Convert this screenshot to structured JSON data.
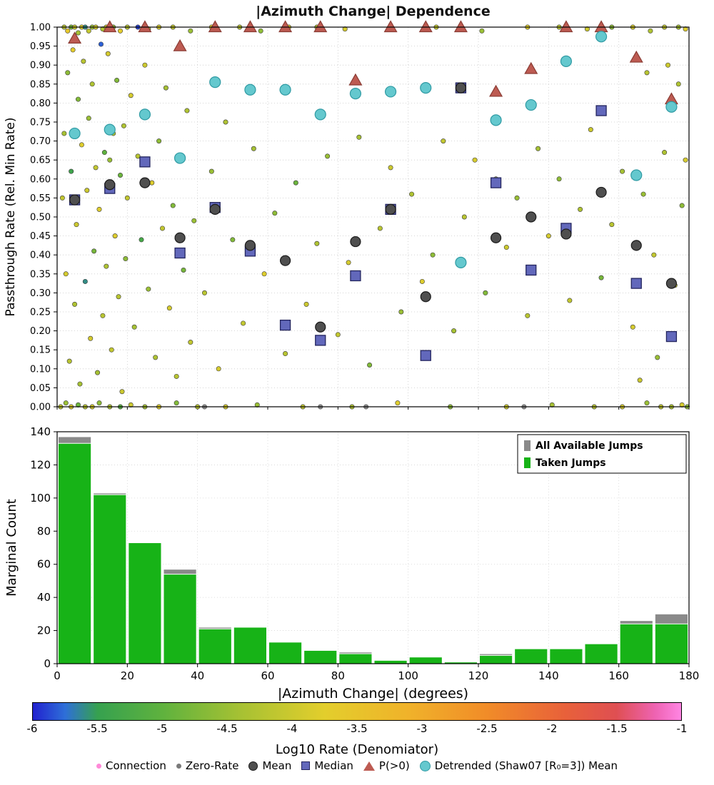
{
  "figure": {
    "title": "|Azimuth Change| Dependence"
  },
  "chart_data": [
    {
      "type": "scatter",
      "title": "|Azimuth Change| Dependence",
      "xlabel": "",
      "ylabel": "Passthrough Rate (Rel. Min Rate)",
      "xlim": [
        0,
        180
      ],
      "ylim": [
        0.0,
        1.0
      ],
      "grid": true,
      "yticks": [
        "0.00",
        "0.05",
        "0.10",
        "0.15",
        "0.20",
        "0.25",
        "0.30",
        "0.35",
        "0.40",
        "0.45",
        "0.50",
        "0.55",
        "0.60",
        "0.65",
        "0.70",
        "0.75",
        "0.80",
        "0.85",
        "0.90",
        "0.95",
        "1.00"
      ],
      "xticks": [
        0,
        20,
        40,
        60,
        80,
        100,
        120,
        140,
        160,
        180
      ],
      "styles": {
        "mean_fill": "#4f4f4f",
        "mean_edge": "#1a1a1a",
        "median_fill": "#6268bb",
        "median_edge": "#23255e",
        "p_gt0_fill": "#bd5b52",
        "p_gt0_edge": "#8a3b33",
        "detrended_fill": "#64c8ce",
        "detrended_edge": "#2f9aa3",
        "zero_rate_fill": "#8a8a8a",
        "dot_edge": "#3a3a3a"
      },
      "connection_points": [
        [
          2,
          1.0,
          -4.2
        ],
        [
          3,
          0.99,
          -3.6
        ],
        [
          4,
          1.0,
          -4.8
        ],
        [
          5,
          1.0,
          -4.0
        ],
        [
          6,
          0.985,
          -4.4
        ],
        [
          7,
          1.0,
          -3.8
        ],
        [
          8,
          1.0,
          -5.6
        ],
        [
          9,
          0.99,
          -4.1
        ],
        [
          10,
          1.0,
          -4.5
        ],
        [
          11,
          1.0,
          -3.9
        ],
        [
          13,
          0.995,
          -4.3
        ],
        [
          14,
          1.0,
          -4.0
        ],
        [
          16,
          1.0,
          -4.6
        ],
        [
          18,
          0.99,
          -3.7
        ],
        [
          20,
          1.0,
          -4.2
        ],
        [
          23,
          1.0,
          -5.9
        ],
        [
          26,
          0.995,
          -4.4
        ],
        [
          29,
          1.0,
          -3.9
        ],
        [
          33,
          1.0,
          -4.1
        ],
        [
          38,
          0.99,
          -4.5
        ],
        [
          44,
          1.0,
          -3.8
        ],
        [
          52,
          1.0,
          -4.2
        ],
        [
          58,
          0.99,
          -4.6
        ],
        [
          66,
          1.0,
          -4.0
        ],
        [
          74,
          1.0,
          -4.3
        ],
        [
          82,
          0.995,
          -3.9
        ],
        [
          95,
          1.0,
          -4.4
        ],
        [
          108,
          1.0,
          -4.1
        ],
        [
          121,
          0.99,
          -4.5
        ],
        [
          134,
          1.0,
          -3.8
        ],
        [
          143,
          1.0,
          -4.2
        ],
        [
          151,
          0.995,
          -4.0
        ],
        [
          158,
          1.0,
          -4.6
        ],
        [
          164,
          1.0,
          -3.9
        ],
        [
          169,
          0.99,
          -4.3
        ],
        [
          173,
          1.0,
          -4.1
        ],
        [
          177,
          1.0,
          -4.4
        ],
        [
          179,
          0.995,
          -3.8
        ],
        [
          1,
          0.0,
          -4.1
        ],
        [
          2.5,
          0.01,
          -4.5
        ],
        [
          4,
          0.0,
          -3.8
        ],
        [
          6,
          0.005,
          -4.9
        ],
        [
          8,
          0.0,
          -4.2
        ],
        [
          10,
          0.0,
          -3.9
        ],
        [
          12,
          0.01,
          -4.6
        ],
        [
          15,
          0.0,
          -4.3
        ],
        [
          18,
          0.0,
          -5.1
        ],
        [
          21,
          0.005,
          -4.0
        ],
        [
          25,
          0.0,
          -4.4
        ],
        [
          29,
          0.0,
          -3.8
        ],
        [
          34,
          0.01,
          -4.7
        ],
        [
          40,
          0.0,
          -4.2
        ],
        [
          48,
          0.0,
          -3.9
        ],
        [
          57,
          0.005,
          -4.5
        ],
        [
          70,
          0.0,
          -4.1
        ],
        [
          84,
          0.0,
          -4.3
        ],
        [
          97,
          0.01,
          -3.8
        ],
        [
          112,
          0.0,
          -4.6
        ],
        [
          128,
          0.0,
          -4.0
        ],
        [
          141,
          0.005,
          -4.4
        ],
        [
          153,
          0.0,
          -4.2
        ],
        [
          161,
          0.0,
          -3.9
        ],
        [
          168,
          0.01,
          -4.5
        ],
        [
          172,
          0.0,
          -4.1
        ],
        [
          175,
          0.0,
          -4.3
        ],
        [
          178,
          0.005,
          -3.9
        ],
        [
          179.5,
          0.0,
          -4.6
        ],
        [
          1.5,
          0.55,
          -4.1
        ],
        [
          2,
          0.72,
          -4.4
        ],
        [
          2.5,
          0.35,
          -3.9
        ],
        [
          3,
          0.88,
          -4.6
        ],
        [
          3.5,
          0.12,
          -4.2
        ],
        [
          4,
          0.62,
          -5.4
        ],
        [
          4.5,
          0.94,
          -3.7
        ],
        [
          5,
          0.27,
          -4.3
        ],
        [
          5.5,
          0.48,
          -4.0
        ],
        [
          6,
          0.81,
          -4.7
        ],
        [
          6.5,
          0.06,
          -4.4
        ],
        [
          7,
          0.69,
          -3.8
        ],
        [
          7.5,
          0.91,
          -4.2
        ],
        [
          8,
          0.33,
          -5.6
        ],
        [
          8.5,
          0.57,
          -4.0
        ],
        [
          9,
          0.76,
          -4.5
        ],
        [
          9.5,
          0.18,
          -3.9
        ],
        [
          10,
          0.85,
          -4.3
        ],
        [
          10.5,
          0.41,
          -4.8
        ],
        [
          11,
          0.63,
          -4.1
        ],
        [
          11.5,
          0.09,
          -4.4
        ],
        [
          12,
          0.52,
          -3.8
        ],
        [
          12.5,
          0.955,
          -5.8
        ],
        [
          13,
          0.24,
          -4.2
        ],
        [
          13.5,
          0.67,
          -5.0
        ],
        [
          14,
          0.37,
          -4.3
        ],
        [
          14.5,
          0.93,
          -3.9
        ],
        [
          15,
          0.65,
          -4.5
        ],
        [
          15.5,
          0.15,
          -4.1
        ],
        [
          16,
          0.72,
          -4.4
        ],
        [
          16.5,
          0.45,
          -3.8
        ],
        [
          17,
          0.86,
          -4.7
        ],
        [
          17.5,
          0.29,
          -4.2
        ],
        [
          18,
          0.61,
          -4.9
        ],
        [
          18.5,
          0.04,
          -4.0
        ],
        [
          19,
          0.74,
          -4.3
        ],
        [
          19.5,
          0.39,
          -4.6
        ],
        [
          20,
          0.55,
          -4.1
        ],
        [
          21,
          0.82,
          -3.9
        ],
        [
          22,
          0.21,
          -4.4
        ],
        [
          23,
          0.66,
          -4.2
        ],
        [
          24,
          0.44,
          -5.3
        ],
        [
          25,
          0.9,
          -4.0
        ],
        [
          26,
          0.31,
          -4.5
        ],
        [
          27,
          0.59,
          -3.8
        ],
        [
          28,
          0.13,
          -4.3
        ],
        [
          29,
          0.7,
          -4.6
        ],
        [
          30,
          0.47,
          -4.1
        ],
        [
          31,
          0.84,
          -4.4
        ],
        [
          32,
          0.26,
          -3.9
        ],
        [
          33,
          0.53,
          -4.7
        ],
        [
          34,
          0.08,
          -4.2
        ],
        [
          35,
          0.65,
          -4.0
        ],
        [
          36,
          0.36,
          -4.8
        ],
        [
          37,
          0.78,
          -4.3
        ],
        [
          38,
          0.17,
          -4.1
        ],
        [
          39,
          0.49,
          -4.5
        ],
        [
          42,
          0.3,
          -4.2
        ],
        [
          44,
          0.62,
          -4.5
        ],
        [
          46,
          0.1,
          -3.9
        ],
        [
          48,
          0.75,
          -4.3
        ],
        [
          50,
          0.44,
          -4.7
        ],
        [
          53,
          0.22,
          -4.1
        ],
        [
          56,
          0.68,
          -4.4
        ],
        [
          59,
          0.35,
          -3.8
        ],
        [
          62,
          0.51,
          -4.6
        ],
        [
          65,
          0.14,
          -4.2
        ],
        [
          68,
          0.59,
          -4.9
        ],
        [
          71,
          0.27,
          -4.0
        ],
        [
          74,
          0.43,
          -4.3
        ],
        [
          77,
          0.66,
          -4.5
        ],
        [
          80,
          0.19,
          -4.1
        ],
        [
          83,
          0.38,
          -3.9
        ],
        [
          86,
          0.71,
          -4.4
        ],
        [
          89,
          0.11,
          -4.7
        ],
        [
          92,
          0.47,
          -4.2
        ],
        [
          95,
          0.63,
          -4.0
        ],
        [
          98,
          0.25,
          -4.5
        ],
        [
          101,
          0.56,
          -4.3
        ],
        [
          104,
          0.33,
          -3.8
        ],
        [
          107,
          0.4,
          -4.6
        ],
        [
          110,
          0.7,
          -4.1
        ],
        [
          113,
          0.2,
          -4.4
        ],
        [
          116,
          0.5,
          -4.2
        ],
        [
          119,
          0.65,
          -3.9
        ],
        [
          122,
          0.3,
          -4.7
        ],
        [
          125,
          0.6,
          -4.3
        ],
        [
          128,
          0.42,
          -4.0
        ],
        [
          131,
          0.55,
          -4.5
        ],
        [
          134,
          0.24,
          -4.2
        ],
        [
          137,
          0.68,
          -4.4
        ],
        [
          140,
          0.45,
          -3.9
        ],
        [
          143,
          0.6,
          -4.6
        ],
        [
          146,
          0.28,
          -4.1
        ],
        [
          149,
          0.52,
          -4.3
        ],
        [
          152,
          0.73,
          -4.0
        ],
        [
          155,
          0.34,
          -4.8
        ],
        [
          158,
          0.48,
          -4.2
        ],
        [
          161,
          0.62,
          -4.4
        ],
        [
          164,
          0.21,
          -3.9
        ],
        [
          167,
          0.56,
          -4.5
        ],
        [
          170,
          0.4,
          -4.1
        ],
        [
          173,
          0.67,
          -4.3
        ],
        [
          176,
          0.32,
          -4.0
        ],
        [
          178,
          0.53,
          -4.6
        ],
        [
          174,
          0.9,
          -4.0
        ],
        [
          177,
          0.85,
          -4.3
        ],
        [
          179,
          0.65,
          -3.9
        ],
        [
          168,
          0.88,
          -4.2
        ],
        [
          171,
          0.13,
          -4.5
        ],
        [
          166,
          0.07,
          -4.0
        ]
      ],
      "zero_rate_points": [
        [
          42,
          0.0
        ],
        [
          75,
          0.0
        ],
        [
          88,
          0.0
        ],
        [
          133,
          0.0
        ]
      ],
      "mean": {
        "x": [
          5,
          15,
          25,
          35,
          45,
          55,
          65,
          75,
          85,
          95,
          105,
          115,
          125,
          135,
          145,
          155,
          165,
          175
        ],
        "y": [
          0.545,
          0.585,
          0.59,
          0.445,
          0.52,
          0.425,
          0.385,
          0.21,
          0.435,
          0.52,
          0.29,
          0.84,
          0.445,
          0.5,
          0.455,
          0.565,
          0.425,
          0.325
        ]
      },
      "median": {
        "x": [
          5,
          15,
          25,
          35,
          45,
          55,
          65,
          75,
          85,
          95,
          105,
          115,
          125,
          135,
          145,
          155,
          165,
          175
        ],
        "y": [
          0.545,
          0.575,
          0.645,
          0.405,
          0.525,
          0.41,
          0.215,
          0.175,
          0.345,
          0.52,
          0.135,
          0.84,
          0.59,
          0.36,
          0.47,
          0.78,
          0.325,
          0.185
        ]
      },
      "p_gt0": {
        "x": [
          5,
          15,
          25,
          35,
          45,
          55,
          65,
          75,
          85,
          95,
          105,
          115,
          125,
          135,
          145,
          155,
          165,
          175
        ],
        "y": [
          0.97,
          1.0,
          1.0,
          0.95,
          1.0,
          1.0,
          1.0,
          1.0,
          0.86,
          1.0,
          1.0,
          1.0,
          0.83,
          0.89,
          1.0,
          1.0,
          0.92,
          0.81
        ]
      },
      "detrended": {
        "x": [
          5,
          15,
          25,
          35,
          45,
          55,
          65,
          75,
          85,
          95,
          105,
          115,
          125,
          135,
          145,
          155,
          165,
          175
        ],
        "y": [
          0.72,
          0.73,
          0.77,
          0.655,
          0.855,
          0.835,
          0.835,
          0.77,
          0.825,
          0.83,
          0.84,
          0.38,
          0.755,
          0.795,
          0.91,
          0.975,
          0.61,
          0.79
        ]
      }
    },
    {
      "type": "bar",
      "ylabel": "Marginal Count",
      "xlabel": "|Azimuth Change| (degrees)",
      "ylim": [
        0,
        140
      ],
      "yticks": [
        0,
        20,
        40,
        60,
        80,
        100,
        120,
        140
      ],
      "xticks": [
        "0",
        "20",
        "40",
        "60",
        "80",
        "100",
        "120",
        "140",
        "160",
        "180"
      ],
      "bin_width": 10,
      "bin_centers": [
        5,
        15,
        25,
        35,
        45,
        55,
        65,
        75,
        85,
        95,
        105,
        115,
        125,
        135,
        145,
        155,
        165,
        175
      ],
      "series": [
        {
          "name": "All Available Jumps",
          "color": "#8a8a8a",
          "values": [
            137,
            103,
            73,
            57,
            22,
            22,
            13,
            8,
            7,
            2,
            4,
            1,
            6,
            9,
            9,
            12,
            26,
            30
          ]
        },
        {
          "name": "Taken Jumps",
          "color": "#17b317",
          "values": [
            133,
            102,
            73,
            54,
            21,
            22,
            13,
            8,
            6,
            2,
            4,
            1,
            5,
            9,
            9,
            12,
            24,
            24
          ]
        }
      ],
      "legend_position": "top-right"
    }
  ],
  "colorbar": {
    "label": "Log10 Rate (Denomiator)",
    "range": [
      -6,
      -1
    ],
    "ticks": [
      "-6",
      "-5.5",
      "-5",
      "-4.5",
      "-4",
      "-3.5",
      "-3",
      "-2.5",
      "-2",
      "-1.5",
      "-1"
    ],
    "stops": [
      {
        "t": 0.0,
        "c": "#2121cf"
      },
      {
        "t": 0.05,
        "c": "#2e6fd8"
      },
      {
        "t": 0.1,
        "c": "#36a14f"
      },
      {
        "t": 0.2,
        "c": "#5fb23e"
      },
      {
        "t": 0.32,
        "c": "#a6c133"
      },
      {
        "t": 0.45,
        "c": "#e3ce2c"
      },
      {
        "t": 0.58,
        "c": "#f0b22a"
      },
      {
        "t": 0.7,
        "c": "#f18c28"
      },
      {
        "t": 0.82,
        "c": "#e8613a"
      },
      {
        "t": 0.9,
        "c": "#df4f52"
      },
      {
        "t": 0.96,
        "c": "#ee63b2"
      },
      {
        "t": 1.0,
        "c": "#ff85e3"
      }
    ]
  },
  "marker_legend": [
    {
      "label": "Connection",
      "marker": "dot",
      "color": "#ff8ad8"
    },
    {
      "label": "Zero-Rate",
      "marker": "dot",
      "color": "#7a7a7a"
    },
    {
      "label": "Mean",
      "marker": "circle",
      "color": "#4f4f4f"
    },
    {
      "label": "Median",
      "marker": "square",
      "color": "#6268bb"
    },
    {
      "label": "P(>0)",
      "marker": "triangle",
      "color": "#bd5b52"
    },
    {
      "label": "Detrended (Shaw07 [R₀=3]) Mean",
      "marker": "circle-large",
      "color": "#64c8ce"
    }
  ]
}
